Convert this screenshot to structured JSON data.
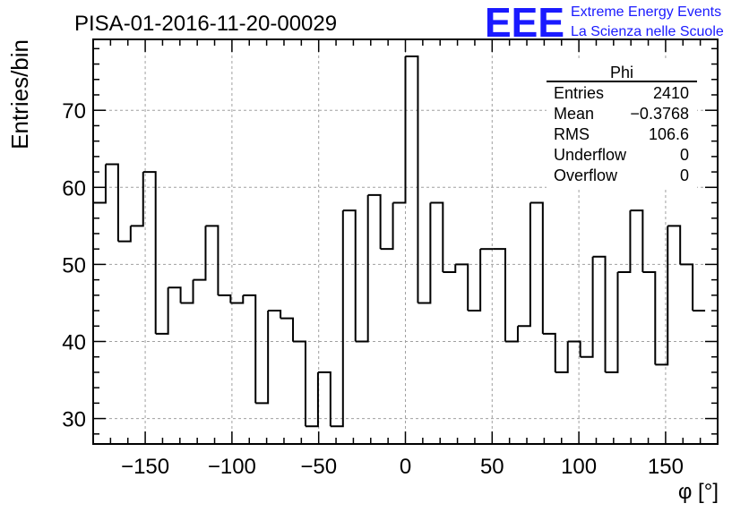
{
  "chart_data": {
    "type": "histogram",
    "title": "PISA-01-2016-11-20-00029",
    "xlabel": "φ [°]",
    "ylabel": "Entries/bin",
    "xlim": [
      -180,
      180
    ],
    "ylim": [
      26.7,
      79.2
    ],
    "grid": true,
    "bin_edges": [
      -180,
      -172.8,
      -165.6,
      -158.4,
      -151.2,
      -144,
      -136.8,
      -129.6,
      -122.4,
      -115.2,
      -108,
      -100.8,
      -93.6,
      -86.4,
      -79.2,
      -72,
      -64.8,
      -57.6,
      -50.4,
      -43.2,
      -36,
      -28.8,
      -21.6,
      -14.4,
      -7.2,
      0,
      7.2,
      14.4,
      21.6,
      28.8,
      36,
      43.2,
      50.4,
      57.6,
      64.8,
      72,
      79.2,
      86.4,
      93.6,
      100.8,
      108,
      115.2,
      122.4,
      129.6,
      136.8,
      144,
      151.2,
      158.4,
      165.6,
      172.8
    ],
    "values": [
      58,
      63,
      53,
      55,
      62,
      41,
      47,
      45,
      48,
      55,
      46,
      45,
      46,
      32,
      44,
      43,
      40,
      29,
      36,
      29,
      57,
      40,
      59,
      52,
      58,
      77,
      45,
      58,
      49,
      50,
      44,
      52,
      52,
      40,
      42,
      58,
      41,
      36,
      40,
      38,
      51,
      36,
      49,
      57,
      49,
      37,
      55,
      50,
      44
    ],
    "x_ticks": [
      -150,
      -100,
      -50,
      0,
      50,
      100,
      150
    ],
    "x_tick_labels": [
      "−150",
      "−100",
      "−50",
      "0",
      "50",
      "100",
      "150"
    ],
    "y_ticks": [
      30,
      40,
      50,
      60,
      70
    ],
    "y_tick_labels": [
      "30",
      "40",
      "50",
      "60",
      "70"
    ],
    "stats_box": {
      "title": "Phi",
      "rows": [
        {
          "label": "Entries",
          "value": "2410"
        },
        {
          "label": "Mean",
          "value": "−0.3768"
        },
        {
          "label": "RMS",
          "value": "106.6"
        },
        {
          "label": "Underflow",
          "value": "0"
        },
        {
          "label": "Overflow",
          "value": "0"
        }
      ]
    },
    "line_color": "#000000",
    "grid_color": "#a0a0a0"
  },
  "branding": {
    "logo_text": "EEE",
    "line1": "Extreme Energy Events",
    "line2": "La Scienza nelle Scuole",
    "color": "#1a1aff"
  }
}
